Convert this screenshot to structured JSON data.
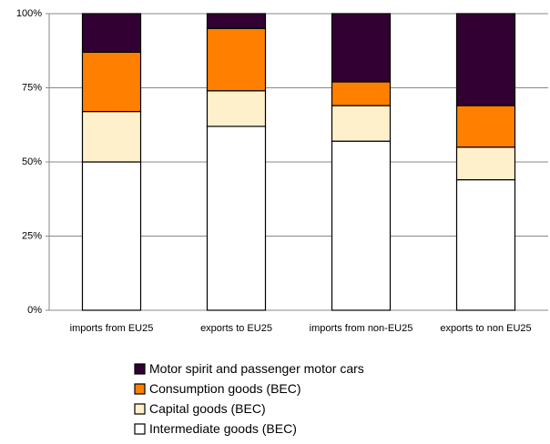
{
  "chart_data": {
    "type": "stacked_bar",
    "categories": [
      "imports from EU25",
      "exports to EU25",
      "imports from non-EU25",
      "exports to non EU25"
    ],
    "series": [
      {
        "name": "Intermediate goods (BEC)",
        "color": "#ffffff",
        "values": [
          50,
          62,
          57,
          44
        ]
      },
      {
        "name": "Capital goods (BEC)",
        "color": "#fff0cc",
        "values": [
          17,
          12,
          12,
          11
        ]
      },
      {
        "name": "Consumption goods (BEC)",
        "color": "#ff8000",
        "values": [
          20,
          21,
          8,
          14
        ]
      },
      {
        "name": "Motor spirit and passenger motor cars",
        "color": "#330033",
        "values": [
          13,
          5,
          23,
          31
        ]
      }
    ],
    "ylim": [
      0,
      100
    ],
    "yticks": [
      {
        "value": 0,
        "label": "0%"
      },
      {
        "value": 25,
        "label": "25%"
      },
      {
        "value": 50,
        "label": "50%"
      },
      {
        "value": 75,
        "label": "75%"
      },
      {
        "value": 100,
        "label": "100%"
      }
    ],
    "grid": true
  }
}
